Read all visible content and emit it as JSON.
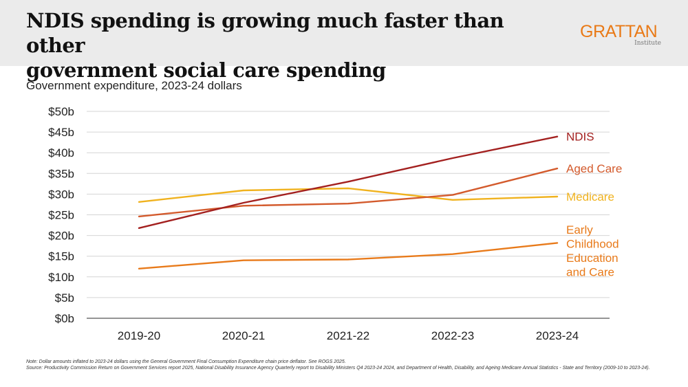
{
  "header": {
    "title_line1": "NDIS spending is growing much faster than other",
    "title_line2": "government social care spending",
    "logo_word": "GRATTAN",
    "logo_sub": "Institute"
  },
  "subtitle": "Government expenditure, 2023-24 dollars",
  "notes": {
    "note": "Note: Dollar amounts inflated to 2023-24 dollars using the General Government Final Consumption Expenditure chain price deflator. See ROGS 2025.",
    "source": "Source: Productivity Commission Return on Government Services report 2025, National Disability Insurance Agency Quarterly report to Disability Ministers Q4 2023-24 2024, and Department of Health, Disability, and Ageing Medicare Annual Statistics - State and Territory (2009-10 to 2023-24)."
  },
  "chart_data": {
    "type": "line",
    "title": "NDIS spending is growing much faster than other government social care spending",
    "ylabel": "Government expenditure, 2023-24 dollars",
    "xlabel": "",
    "categories": [
      "2019-20",
      "2020-21",
      "2021-22",
      "2022-23",
      "2023-24"
    ],
    "ylim": [
      0,
      50
    ],
    "yticks": [
      0,
      5,
      10,
      15,
      20,
      25,
      30,
      35,
      40,
      45,
      50
    ],
    "ytick_labels": [
      "$0b",
      "$5b",
      "$10b",
      "$15b",
      "$20b",
      "$25b",
      "$30b",
      "$35b",
      "$40b",
      "$45b",
      "$50b"
    ],
    "grid": true,
    "legend": "direct labels at right end of lines",
    "series": [
      {
        "name": "NDIS",
        "label_lines": [
          "NDIS"
        ],
        "color": "#a3201f",
        "values": [
          21.8,
          27.9,
          33.0,
          38.7,
          43.9
        ]
      },
      {
        "name": "Aged Care",
        "label_lines": [
          "Aged Care"
        ],
        "color": "#d35a2c",
        "values": [
          24.6,
          27.2,
          27.7,
          29.8,
          36.2
        ]
      },
      {
        "name": "Medicare",
        "label_lines": [
          "Medicare"
        ],
        "color": "#f0b21e",
        "values": [
          28.1,
          30.9,
          31.4,
          28.6,
          29.4
        ]
      },
      {
        "name": "Early Childhood Education and Care",
        "label_lines": [
          "Early",
          "Childhood",
          "Education",
          "and Care"
        ],
        "color": "#e87a1a",
        "values": [
          12.0,
          14.0,
          14.2,
          15.5,
          18.2
        ]
      }
    ]
  }
}
